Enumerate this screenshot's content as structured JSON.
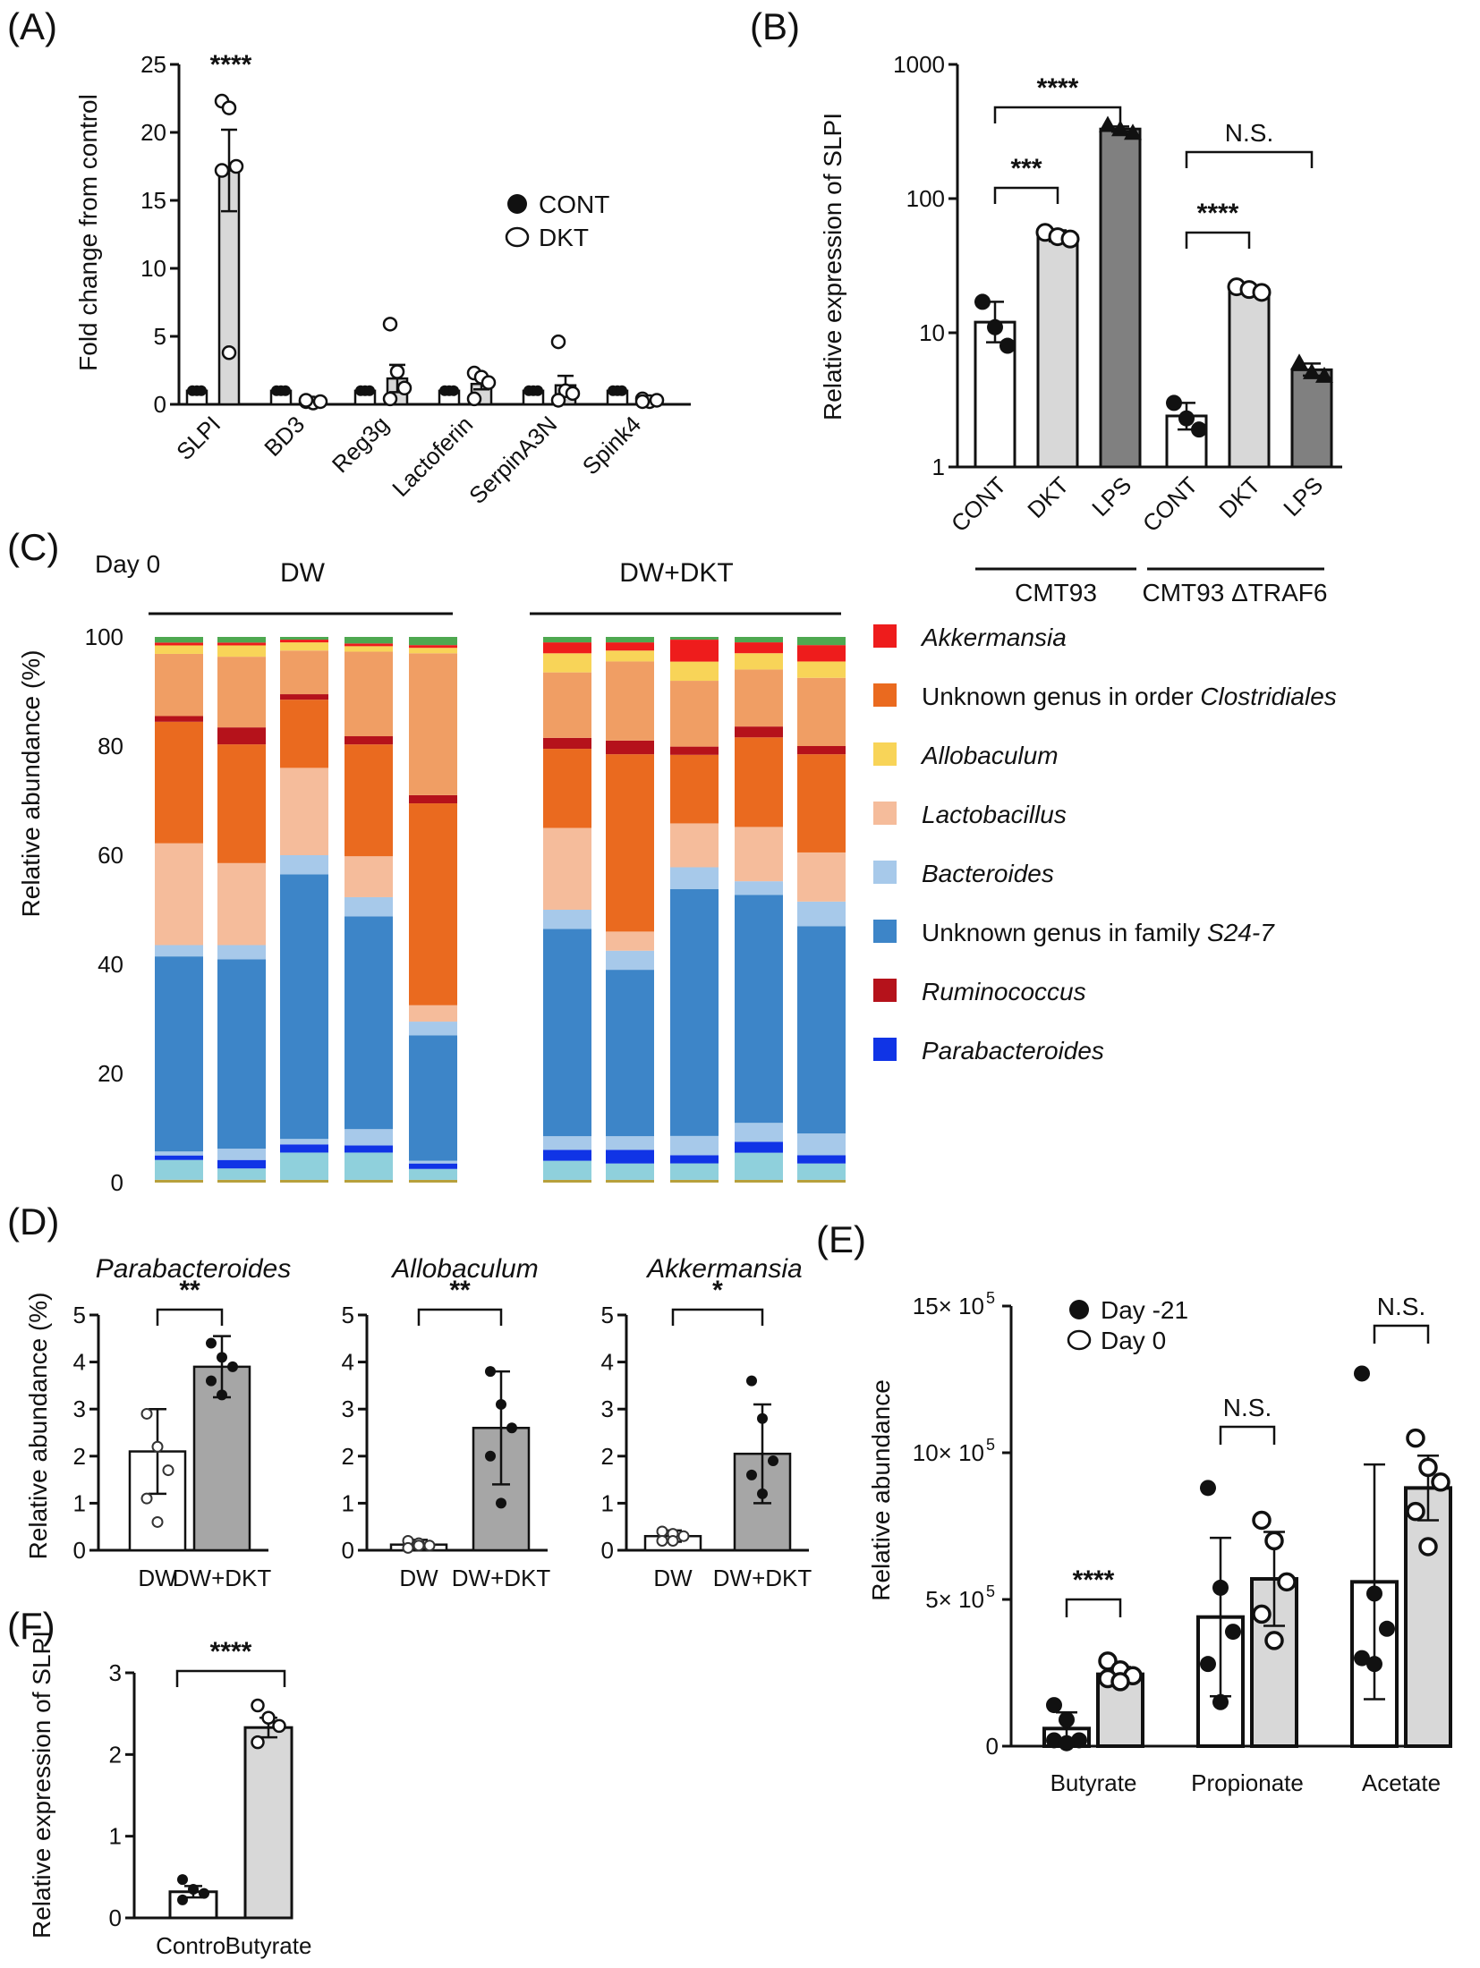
{
  "panel_labels": [
    "(A)",
    "(B)",
    "(C)",
    "(D)",
    "(E)",
    "(F)"
  ],
  "colors": {
    "Akkermansia": "#ee1c1c",
    "Clostridiales": "#ea6a1f",
    "Allobaculum": "#f8d458",
    "Lactobacillus": "#f5bc9b",
    "Bacteroides": "#a7c9ea",
    "S24-7": "#3d85c8",
    "Ruminococcus": "#b5121b",
    "Parabacteroides": "#1034e6",
    "orange_light": "#f09e64",
    "teal": "#8fd0dc",
    "olive": "#b7a03c",
    "green": "#4ea850",
    "bar_light": "#d8d8d8",
    "bar_dark": "#808080"
  },
  "chart_data": [
    {
      "id": "A",
      "type": "bar",
      "ylabel": "Fold change from control",
      "ylim": [
        0,
        25
      ],
      "yticks": [
        "0",
        "5",
        "10",
        "15",
        "20",
        "25"
      ],
      "categories": [
        "SLPI",
        "BD3",
        "Reg3g",
        "Lactoferin",
        "SerpinA3N",
        "Spink4"
      ],
      "series": [
        {
          "name": "CONT",
          "values": [
            1,
            1,
            1,
            1,
            1,
            1
          ]
        },
        {
          "name": "DKT",
          "values": [
            17.2,
            0.2,
            1.9,
            1.5,
            1.4,
            0.3
          ],
          "errors": [
            3.0,
            0.1,
            1.0,
            0.4,
            0.7,
            0.1
          ]
        }
      ],
      "points": {
        "CONT": [
          [
            1,
            1,
            1
          ],
          [
            1,
            1,
            1
          ],
          [
            1,
            1,
            1
          ],
          [
            1,
            1,
            1
          ],
          [
            1,
            1,
            1
          ],
          [
            1,
            1,
            1
          ]
        ],
        "DKT": [
          [
            22.3,
            21.8,
            17.5,
            17.2,
            3.8
          ],
          [
            0.2,
            0.1,
            0.2,
            0.3
          ],
          [
            5.9,
            2.4,
            1.2,
            0.4
          ],
          [
            2.3,
            2.0,
            1.6,
            0.4
          ],
          [
            4.6,
            1.0,
            0.8,
            0.3
          ],
          [
            0.4,
            0.2,
            0.3,
            0.2
          ]
        ]
      },
      "significance": [
        {
          "category": "SLPI",
          "label": "****"
        }
      ],
      "legend": [
        "CONT",
        "DKT"
      ]
    },
    {
      "id": "B",
      "type": "bar",
      "yscale": "log",
      "ylabel": "Relative  expression of SLPI",
      "ylim": [
        1,
        1000
      ],
      "yticks": [
        "1",
        "10",
        "100",
        "1000"
      ],
      "categories": [
        "CONT",
        "DKT",
        "LPS",
        "CONT",
        "DKT",
        "LPS"
      ],
      "groups": [
        "CMT93",
        "CMT93 ΔTRAF6"
      ],
      "values": [
        12,
        53,
        330,
        2.4,
        21,
        5.3
      ],
      "err_low": [
        8.5,
        48,
        315,
        1.9,
        19.5,
        4.8
      ],
      "err_high": [
        17,
        58,
        345,
        3.0,
        22.5,
        5.9
      ],
      "points": [
        [
          17,
          11,
          8
        ],
        [
          56,
          52,
          50
        ],
        [
          355,
          330,
          310
        ],
        [
          3,
          2.3,
          1.9
        ],
        [
          22,
          21,
          20
        ],
        [
          6,
          5.1,
          4.8
        ]
      ],
      "significance": [
        {
          "label": "****",
          "from": 0,
          "to": 2
        },
        {
          "label": "***",
          "from": 0,
          "to": 1
        },
        {
          "label": "N.S.",
          "from": 3,
          "to": 5
        },
        {
          "label": "****",
          "from": 3,
          "to": 4
        }
      ]
    },
    {
      "id": "C",
      "type": "stacked_bar",
      "title_top": "Day 0",
      "groups": [
        "DW",
        "DW+DKT"
      ],
      "ylabel": "Relative  abundance (%)",
      "ylim": [
        0,
        100
      ],
      "yticks": [
        "0",
        "20",
        "40",
        "60",
        "80",
        "100"
      ],
      "segment_order": [
        "olive",
        "teal",
        "Parabacteroides",
        "Bacteroides",
        "S24-7",
        "Bacteroides",
        "Lactobacillus",
        "Clostridiales",
        "Ruminococcus",
        "orange_light",
        "Allobaculum",
        "Akkermansia",
        "green"
      ],
      "samples": [
        [
          0.5,
          3.5,
          0.8,
          0.7,
          34.5,
          2.0,
          18.0,
          21.5,
          1.0,
          11.0,
          1.5,
          0.5,
          1.0
        ],
        [
          0.5,
          2.0,
          1.5,
          2.0,
          33.5,
          2.5,
          14.5,
          21.0,
          3.0,
          12.5,
          2.0,
          0.5,
          1.0
        ],
        [
          0.5,
          5.0,
          1.5,
          1.0,
          48.5,
          3.5,
          16.0,
          12.5,
          1.0,
          8.0,
          1.5,
          0.5,
          0.5
        ],
        [
          0.5,
          5.0,
          1.3,
          3.0,
          39.0,
          3.5,
          7.5,
          20.5,
          1.5,
          15.5,
          1.0,
          0.5,
          1.2
        ],
        [
          0.5,
          2.0,
          1.0,
          0.5,
          23.0,
          2.5,
          3.0,
          37.0,
          1.5,
          26.0,
          1.0,
          0.5,
          1.5
        ],
        [
          0.5,
          3.5,
          2.0,
          2.5,
          38.0,
          3.5,
          15.0,
          14.5,
          2.0,
          12.0,
          3.5,
          2.0,
          1.0
        ],
        [
          0.5,
          3.0,
          2.5,
          2.5,
          30.5,
          3.5,
          3.5,
          32.5,
          2.5,
          14.5,
          2.0,
          1.5,
          1.0
        ],
        [
          0.5,
          3.0,
          1.5,
          3.5,
          45.0,
          4.0,
          8.0,
          12.5,
          1.5,
          12.0,
          3.5,
          4.0,
          0.5
        ],
        [
          0.5,
          5.0,
          2.0,
          3.5,
          42.0,
          2.5,
          10.0,
          16.5,
          2.0,
          10.5,
          3.0,
          2.0,
          1.0
        ],
        [
          0.5,
          3.0,
          1.5,
          4.0,
          38.0,
          4.5,
          9.0,
          18.0,
          1.5,
          12.5,
          3.0,
          3.0,
          1.5
        ]
      ],
      "legend": [
        {
          "key": "Akkermansia",
          "parts": [
            {
              "t": "Akkermansia",
              "i": true
            }
          ]
        },
        {
          "key": "Clostridiales",
          "parts": [
            {
              "t": "Unknown genus in order ",
              "i": false
            },
            {
              "t": "Clostridiales",
              "i": true
            }
          ]
        },
        {
          "key": "Allobaculum",
          "parts": [
            {
              "t": "Allobaculum",
              "i": true
            }
          ]
        },
        {
          "key": "Lactobacillus",
          "parts": [
            {
              "t": "Lactobacillus",
              "i": true
            }
          ]
        },
        {
          "key": "Bacteroides",
          "parts": [
            {
              "t": "Bacteroides",
              "i": true
            }
          ]
        },
        {
          "key": "S24-7",
          "parts": [
            {
              "t": "Unknown genus in family ",
              "i": false
            },
            {
              "t": "S24-7",
              "i": true
            }
          ]
        },
        {
          "key": "Ruminococcus",
          "parts": [
            {
              "t": "Ruminococcus",
              "i": true
            }
          ]
        },
        {
          "key": "Parabacteroides",
          "parts": [
            {
              "t": "Parabacteroides",
              "i": true
            }
          ]
        }
      ]
    },
    {
      "id": "D",
      "type": "bar",
      "ylabel": "Relative  abundance (%)",
      "ylim": [
        0,
        5
      ],
      "yticks": [
        "0",
        "1",
        "2",
        "3",
        "4",
        "5"
      ],
      "subplots": [
        {
          "title": "Parabacteroides",
          "categories": [
            "DW",
            "DW+DKT"
          ],
          "values": [
            2.1,
            3.9
          ],
          "errors": [
            0.9,
            0.65
          ],
          "points": [
            [
              2.9,
              2.2,
              1.7,
              1.1,
              0.6
            ],
            [
              4.4,
              4.1,
              3.9,
              3.6,
              3.3
            ]
          ],
          "significance": "**"
        },
        {
          "title": "Allobaculum",
          "categories": [
            "DW",
            "DW+DKT"
          ],
          "values": [
            0.12,
            2.6
          ],
          "errors": [
            0.1,
            1.2
          ],
          "points": [
            [
              0.2,
              0.15,
              0.1,
              0.05,
              0.1
            ],
            [
              3.8,
              3.1,
              2.6,
              2.0,
              1.0
            ]
          ],
          "significance": "**"
        },
        {
          "title": "Akkermansia",
          "categories": [
            "DW",
            "DW+DKT"
          ],
          "values": [
            0.3,
            2.05
          ],
          "errors": [
            0.12,
            1.05
          ],
          "points": [
            [
              0.4,
              0.35,
              0.3,
              0.2,
              0.2
            ],
            [
              3.6,
              2.8,
              1.9,
              1.6,
              1.2
            ]
          ],
          "significance": "*"
        }
      ]
    },
    {
      "id": "E",
      "type": "bar",
      "ylabel": "Relative  abundance",
      "ylim": [
        0,
        1500000
      ],
      "yticks": [
        "0",
        "5× 10",
        "10× 10",
        "15× 10"
      ],
      "ytick_exp": "5",
      "categories": [
        "Butyrate",
        "Propionate",
        "Acetate"
      ],
      "series": [
        {
          "name": "Day -21",
          "values": [
            60000,
            440000,
            560000
          ],
          "errors": [
            55000,
            270000,
            400000
          ]
        },
        {
          "name": "Day 0",
          "values": [
            245000,
            570000,
            880000
          ],
          "errors": [
            25000,
            160000,
            110000
          ]
        }
      ],
      "points": {
        "Day -21": [
          [
            140000,
            90000,
            20000,
            20000,
            10000
          ],
          [
            880000,
            540000,
            390000,
            280000,
            150000
          ],
          [
            1270000,
            520000,
            400000,
            300000,
            280000
          ]
        ],
        "Day 0": [
          [
            290000,
            260000,
            240000,
            230000,
            220000
          ],
          [
            770000,
            700000,
            560000,
            450000,
            360000
          ],
          [
            1050000,
            950000,
            900000,
            800000,
            680000
          ]
        ]
      },
      "significance": [
        {
          "category": "Butyrate",
          "label": "****"
        },
        {
          "category": "Propionate",
          "label": "N.S."
        },
        {
          "category": "Acetate",
          "label": "N.S."
        }
      ],
      "legend": [
        "Day -21",
        "Day 0"
      ]
    },
    {
      "id": "F",
      "type": "bar",
      "ylabel": "Relative  expression of SLPI",
      "ylim": [
        0,
        3
      ],
      "yticks": [
        "0",
        "1",
        "2",
        "3"
      ],
      "categories": [
        "Control",
        "Butyrate"
      ],
      "values": [
        0.32,
        2.33
      ],
      "errors": [
        0.07,
        0.12
      ],
      "points": [
        [
          0.47,
          0.35,
          0.3,
          0.22
        ],
        [
          2.6,
          2.45,
          2.35,
          2.15
        ]
      ],
      "significance": "****"
    }
  ]
}
